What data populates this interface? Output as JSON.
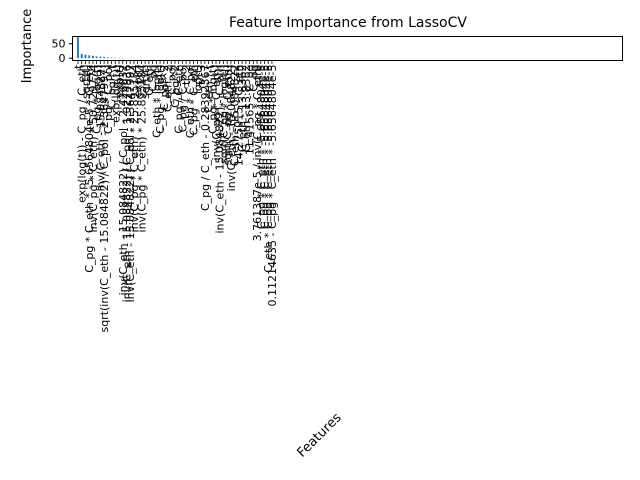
{
  "chart_data": {
    "type": "bar",
    "title": "Feature Importance from LassoCV",
    "xlabel": "Features",
    "ylabel": "Importance",
    "ylim": [
      -8,
      75
    ],
    "yticks": [
      0,
      50
    ],
    "color": "#1f77b4",
    "categories": [
      "t",
      "exp(log(t)) - C_pg / C_eth",
      "sqrt(t)",
      "C_pg * C_eth * -5.6564804e-5 * C_eth",
      "inv(C_pg * C_eth) * 50.729774",
      "C_pg * log(t)",
      "inv(C_eth - 15.084822)",
      "sqrt(inv(C_eth - 15.084822) / C_pol - 2.3647997)",
      "C_pg * C_pol",
      "C_pg * t",
      "exp(log(t))",
      "exp(t)",
      "inv(C_eth - 15.084822) / C_pol - 2.426037",
      "inv(C_eth - 15.084822) / C_pol - 1.0274936",
      "inv(C_eth - 15.084822) / C_pol - 2.3647997",
      "inv(C_pg * C_eth) * 25.895184",
      "exp(t)",
      "inv(C_pg * C_eth) * 25.895184",
      "sqrt(t)",
      "C_eth",
      "C_pg",
      "C_eth * log(t)",
      "C_pg * log(t)",
      "C_pol^2",
      "C_eth^2",
      "C_pol",
      "C_pg^2",
      "C_pg / C_eth",
      "C_pg / C_pol",
      "t^2",
      "C_eth * C_pol",
      "C_pg * C_eth",
      "log(t)",
      "t^3",
      "C_pg / C_eth - 0.28392367",
      "C_eth * t",
      "C_pg * log(t)",
      "inv(C_pg * C_eth)",
      "inv(C_eth - 15.084822) - C_eth",
      "sqrt(C_pg * log(t))",
      "sqrt(C_pg * C_eth)",
      "inv(C_eth - 15.084822)",
      "C_eth - 15.084822",
      "14.275915 - C_eth",
      "C_eth - 13.8362",
      "C_eth - 13.8362",
      "11.41565 - C_pg",
      "C_pg",
      "3.761387e-5 / inv(C_pg * C_eth)",
      "C_pg * C_eth * -5.6564804e-5",
      "C_pg * C_eth * -5.6564804e-5",
      "C_eth * C_pg * C_eth * -5.6564804e-5",
      "0.11214635 - C_pg * C_eth * -5.6564804e-5"
    ],
    "values": [
      73,
      15,
      12,
      10,
      8,
      6,
      5,
      4,
      3,
      2,
      1.5,
      1,
      0.8,
      0.6,
      0.5,
      0.4,
      0.3,
      0.3,
      0.2,
      0.2,
      0.1,
      0.1,
      0.1,
      0.1,
      0.1,
      0.1,
      0.05,
      0.05,
      0.05,
      0.05,
      0.05,
      0.05,
      0.05,
      0.05,
      0,
      0,
      0,
      0,
      0,
      0,
      0,
      0,
      0,
      0,
      0,
      0,
      0,
      0,
      0,
      0,
      0,
      0,
      0
    ]
  }
}
